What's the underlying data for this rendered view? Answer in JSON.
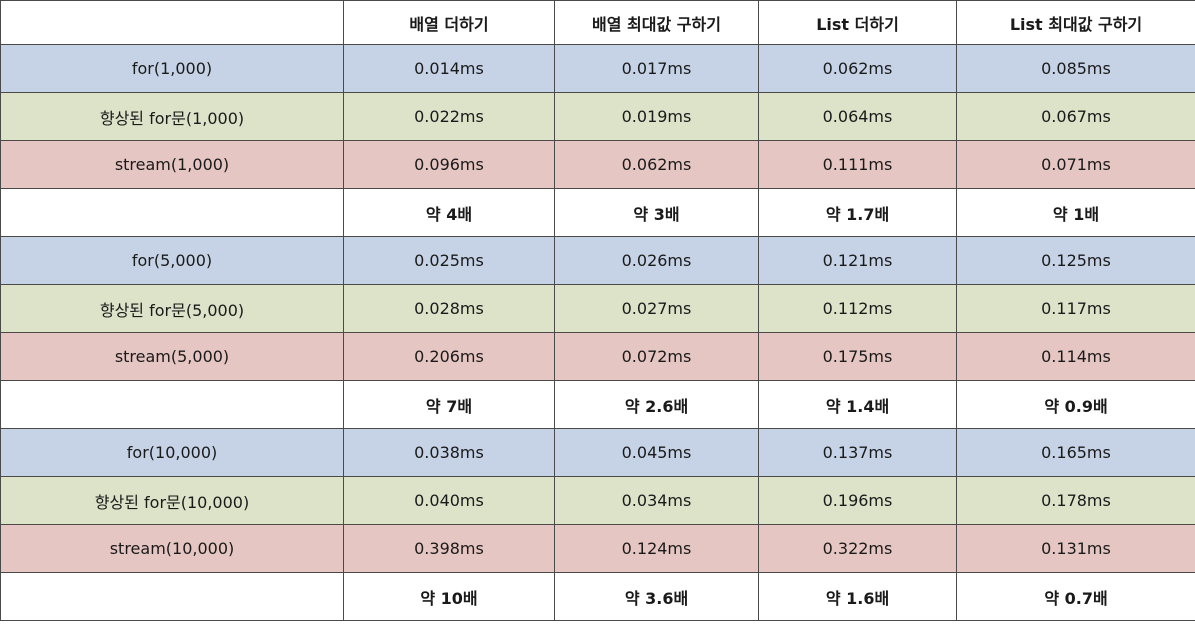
{
  "headers": [
    "",
    "배열 더하기",
    "배열 최대값 구하기",
    "List 더하기",
    "List 최대값 구하기"
  ],
  "rows": [
    {
      "kind": "for",
      "cells": [
        "for(1,000)",
        "0.014ms",
        "0.017ms",
        "0.062ms",
        "0.085ms"
      ]
    },
    {
      "kind": "enh",
      "cells": [
        "향상된 for문(1,000)",
        "0.022ms",
        "0.019ms",
        "0.064ms",
        "0.067ms"
      ]
    },
    {
      "kind": "str",
      "cells": [
        "stream(1,000)",
        "0.096ms",
        "0.062ms",
        "0.111ms",
        "0.071ms"
      ]
    },
    {
      "kind": "ratio",
      "cells": [
        "",
        "약 4배",
        "약 3배",
        "약 1.7배",
        "약 1배"
      ]
    },
    {
      "kind": "for",
      "cells": [
        "for(5,000)",
        "0.025ms",
        "0.026ms",
        "0.121ms",
        "0.125ms"
      ]
    },
    {
      "kind": "enh",
      "cells": [
        "향상된 for문(5,000)",
        "0.028ms",
        "0.027ms",
        "0.112ms",
        "0.117ms"
      ]
    },
    {
      "kind": "str",
      "cells": [
        "stream(5,000)",
        "0.206ms",
        "0.072ms",
        "0.175ms",
        "0.114ms"
      ]
    },
    {
      "kind": "ratio",
      "cells": [
        "",
        "약 7배",
        "약 2.6배",
        "약 1.4배",
        "약 0.9배"
      ]
    },
    {
      "kind": "for",
      "cells": [
        "for(10,000)",
        "0.038ms",
        "0.045ms",
        "0.137ms",
        "0.165ms"
      ]
    },
    {
      "kind": "enh",
      "cells": [
        "향상된 for문(10,000)",
        "0.040ms",
        "0.034ms",
        "0.196ms",
        "0.178ms"
      ]
    },
    {
      "kind": "str",
      "cells": [
        "stream(10,000)",
        "0.398ms",
        "0.124ms",
        "0.322ms",
        "0.131ms"
      ]
    },
    {
      "kind": "ratio",
      "cells": [
        "",
        "약 10배",
        "약 3.6배",
        "약 1.6배",
        "약 0.7배"
      ]
    }
  ],
  "colors": {
    "for_row": "#c6d3e6",
    "enhanced_for_row": "#dde3c9",
    "stream_row": "#e6c6c2",
    "ratio_row": "#ffffff"
  }
}
